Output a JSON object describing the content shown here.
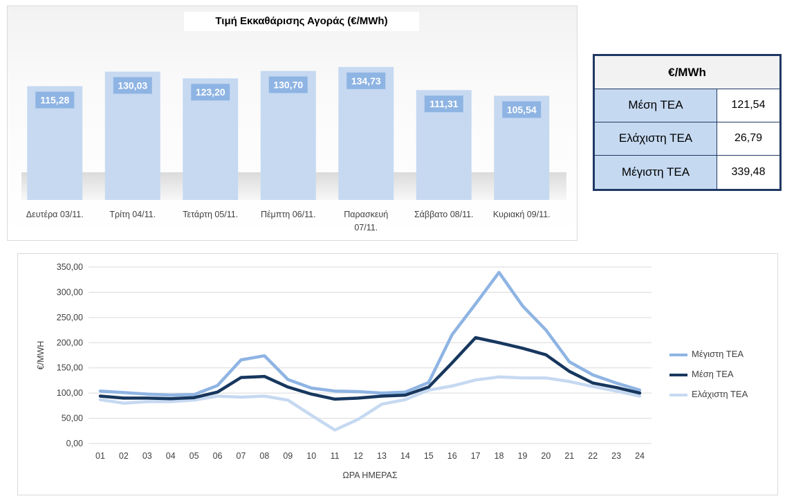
{
  "bar_chart": {
    "title": "Τιμή Εκκαθάρισης Αγοράς (€/MWh)"
  },
  "stats_table": {
    "header": "€/MWh",
    "rows": [
      {
        "label": "Μέση ΤΕΑ",
        "value": "121,54"
      },
      {
        "label": "Ελάχιστη ΤΕΑ",
        "value": "26,79"
      },
      {
        "label": "Μέγιστη ΤΕΑ",
        "value": "339,48"
      }
    ]
  },
  "line_chart": {
    "xlabel": "ΩΡΑ ΗΜΕΡΑΣ",
    "ylabel": "€/MWH"
  },
  "colors": {
    "bar": "#c6d9f1",
    "bar_label_bg": "#8eb4e3",
    "max_series": "#8eb4e3",
    "avg_series": "#17375e",
    "min_series": "#c6d9f1"
  },
  "chart_data": [
    {
      "type": "bar",
      "title": "Τιμή Εκκαθάρισης Αγοράς (€/MWh)",
      "categories": [
        "Δευτέρα 03/11.",
        "Τρίτη 04/11.",
        "Τετάρτη 05/11.",
        "Πέμπτη 06/11.",
        "Παρασκευή 07/11.",
        "Σάββατο 08/11.",
        "Κυριακή 09/11."
      ],
      "values": [
        115.28,
        130.03,
        123.2,
        130.7,
        134.73,
        111.31,
        105.54
      ],
      "value_labels": [
        "115,28",
        "130,03",
        "123,20",
        "130,70",
        "134,73",
        "111,31",
        "105,54"
      ],
      "ylim": [
        0,
        150
      ],
      "grid": false,
      "legend": "none"
    },
    {
      "type": "line",
      "xlabel": "ΩΡΑ ΗΜΕΡΑΣ",
      "ylabel": "€/MWH",
      "x": [
        "01",
        "02",
        "03",
        "04",
        "05",
        "06",
        "07",
        "08",
        "09",
        "10",
        "11",
        "12",
        "13",
        "14",
        "15",
        "16",
        "17",
        "18",
        "19",
        "20",
        "21",
        "22",
        "23",
        "24"
      ],
      "ylim": [
        0,
        350
      ],
      "yticks": [
        0,
        50,
        100,
        150,
        200,
        250,
        300,
        350
      ],
      "ytick_labels": [
        "0,00",
        "50,00",
        "100,00",
        "150,00",
        "200,00",
        "250,00",
        "300,00",
        "350,00"
      ],
      "grid": true,
      "legend": "right",
      "series": [
        {
          "name": "Μέγιστη ΤΕΑ",
          "color": "#8eb4e3",
          "values": [
            104,
            101,
            98,
            96,
            97,
            115,
            166,
            174,
            127,
            110,
            104,
            103,
            100,
            102,
            121,
            216,
            277,
            339.48,
            273,
            225,
            162,
            136,
            120,
            106
          ]
        },
        {
          "name": "Μέση ΤΕΑ",
          "color": "#17375e",
          "values": [
            94,
            90,
            90,
            89,
            91,
            102,
            131,
            133,
            112,
            98,
            88,
            90,
            94,
            96,
            112,
            160,
            210,
            200,
            189,
            176,
            143,
            120,
            111,
            100
          ]
        },
        {
          "name": "Ελάχιστη ΤΕΑ",
          "color": "#c6d9f1",
          "values": [
            87,
            80,
            83,
            83,
            86,
            94,
            92,
            94,
            86,
            56,
            26.79,
            48,
            78,
            87,
            106,
            114,
            126,
            132,
            130,
            130,
            123,
            113,
            104,
            94
          ]
        }
      ]
    }
  ]
}
